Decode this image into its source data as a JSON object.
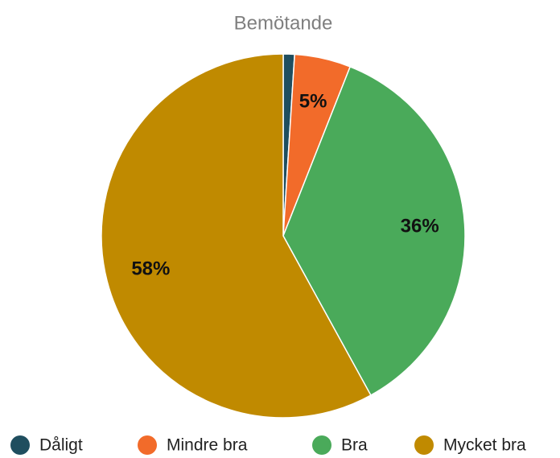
{
  "chart_data": {
    "type": "pie",
    "title": "Bemötande",
    "categories": [
      "Dåligt",
      "Mindre bra",
      "Bra",
      "Mycket bra"
    ],
    "values": [
      1,
      5,
      36,
      58
    ],
    "value_labels": [
      null,
      "5%",
      "36%",
      "58%"
    ],
    "colors": [
      "#1f4e5f",
      "#f26b2a",
      "#4aaa5a",
      "#c08a00"
    ],
    "legend": "bottom"
  }
}
